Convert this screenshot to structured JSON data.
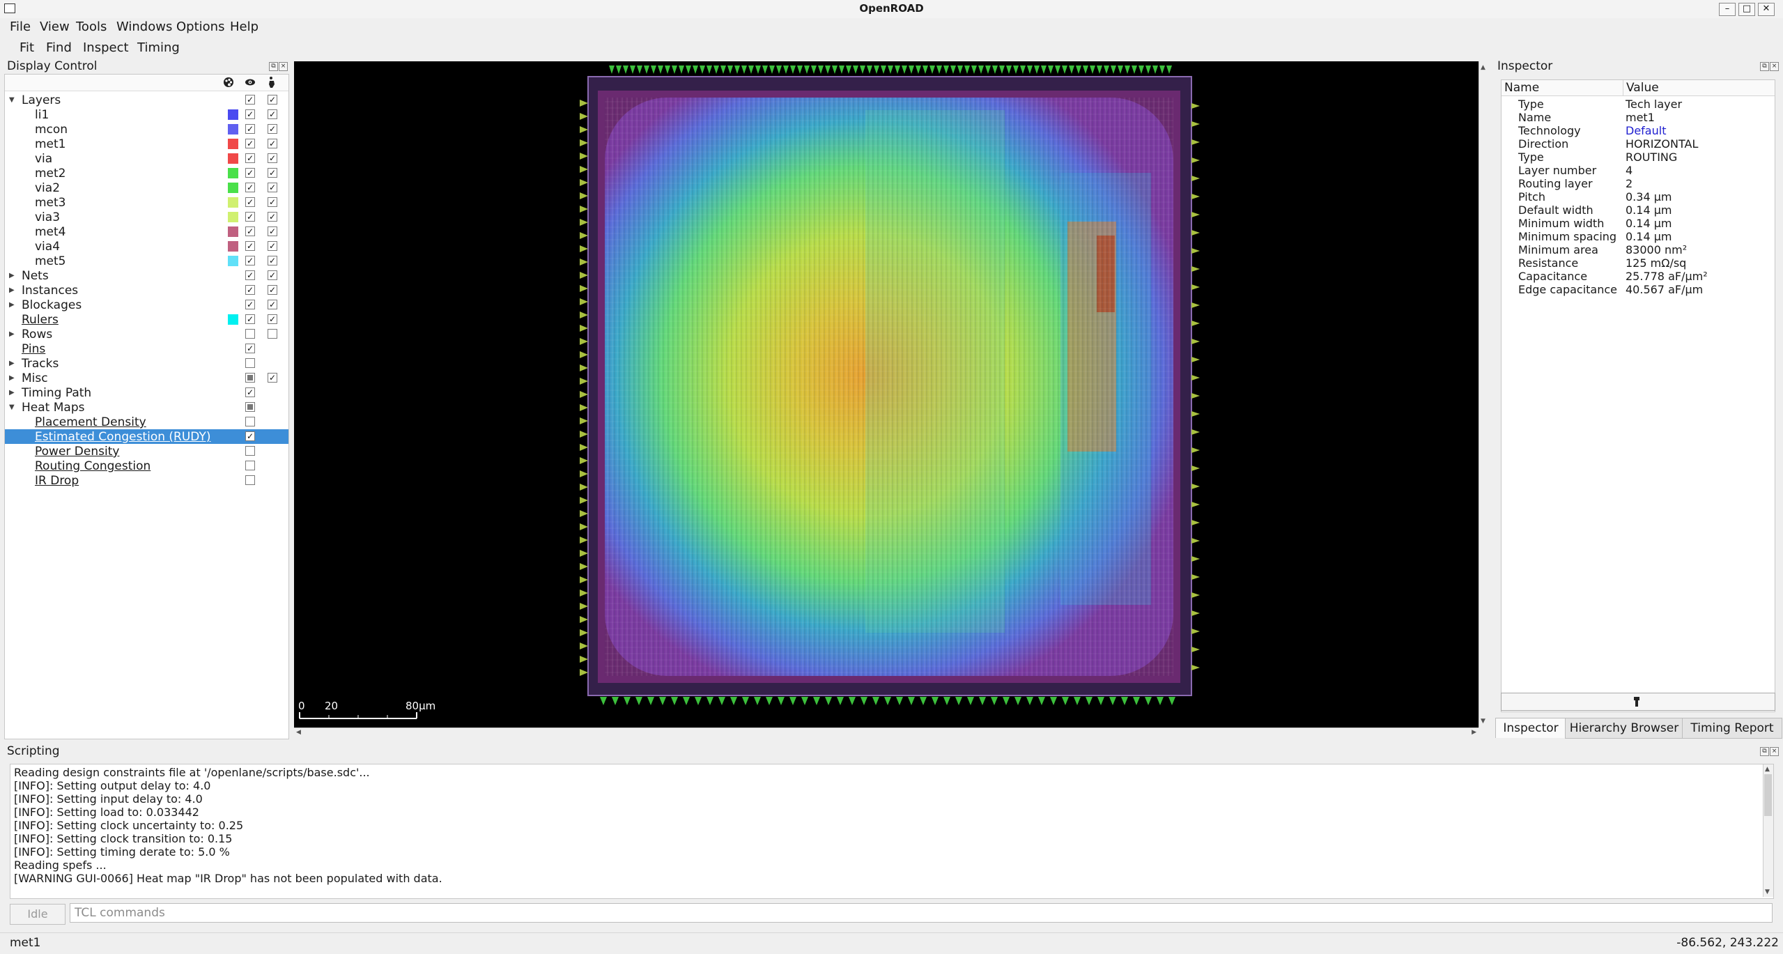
{
  "window": {
    "title": "OpenROAD",
    "minimize": "–",
    "maximize": "□",
    "close": "✕"
  },
  "menu": [
    "File",
    "View",
    "Tools",
    "Windows",
    "Options",
    "Help"
  ],
  "toolbar": [
    "Fit",
    "Find",
    "Inspect",
    "Timing"
  ],
  "display_control": {
    "title": "Display Control",
    "rows": [
      {
        "label": "Layers",
        "indent": 0,
        "expander": "open",
        "swatch": null,
        "c1": "on",
        "c2": "on"
      },
      {
        "label": "li1",
        "indent": 1,
        "expander": null,
        "swatch": "#4a4af0",
        "c1": "on",
        "c2": "on"
      },
      {
        "label": "mcon",
        "indent": 1,
        "expander": null,
        "swatch": "#6060f0",
        "c1": "on",
        "c2": "on"
      },
      {
        "label": "met1",
        "indent": 1,
        "expander": null,
        "swatch": "#f04848",
        "c1": "on",
        "c2": "on"
      },
      {
        "label": "via",
        "indent": 1,
        "expander": null,
        "swatch": "#f04848",
        "c1": "on",
        "c2": "on"
      },
      {
        "label": "met2",
        "indent": 1,
        "expander": null,
        "swatch": "#4ae04a",
        "c1": "on",
        "c2": "on"
      },
      {
        "label": "via2",
        "indent": 1,
        "expander": null,
        "swatch": "#4ae04a",
        "c1": "on",
        "c2": "on"
      },
      {
        "label": "met3",
        "indent": 1,
        "expander": null,
        "swatch": "#d0f070",
        "c1": "on",
        "c2": "on"
      },
      {
        "label": "via3",
        "indent": 1,
        "expander": null,
        "swatch": "#d0f070",
        "c1": "on",
        "c2": "on"
      },
      {
        "label": "met4",
        "indent": 1,
        "expander": null,
        "swatch": "#c06080",
        "c1": "on",
        "c2": "on"
      },
      {
        "label": "via4",
        "indent": 1,
        "expander": null,
        "swatch": "#c06080",
        "c1": "on",
        "c2": "on"
      },
      {
        "label": "met5",
        "indent": 1,
        "expander": null,
        "swatch": "#60e0f8",
        "c1": "on",
        "c2": "on"
      },
      {
        "label": "Nets",
        "indent": 0,
        "expander": "closed",
        "swatch": null,
        "c1": "on",
        "c2": "on"
      },
      {
        "label": "Instances",
        "indent": 0,
        "expander": "closed",
        "swatch": null,
        "c1": "on",
        "c2": "on"
      },
      {
        "label": "Blockages",
        "indent": 0,
        "expander": "closed",
        "swatch": null,
        "c1": "on",
        "c2": "on"
      },
      {
        "label": "Rulers",
        "indent": 0,
        "expander": null,
        "swatch": "#00f0f0",
        "c1": "on",
        "c2": "on",
        "underline": true
      },
      {
        "label": "Rows",
        "indent": 0,
        "expander": "closed",
        "swatch": null,
        "c1": "off",
        "c2": "off"
      },
      {
        "label": "Pins",
        "indent": 0,
        "expander": null,
        "swatch": null,
        "c1": "on",
        "c2": null,
        "underline": true
      },
      {
        "label": "Tracks",
        "indent": 0,
        "expander": "closed",
        "swatch": null,
        "c1": "off",
        "c2": null
      },
      {
        "label": "Misc",
        "indent": 0,
        "expander": "closed",
        "swatch": null,
        "c1": "partial",
        "c2": "on"
      },
      {
        "label": "Timing Path",
        "indent": 0,
        "expander": "closed",
        "swatch": null,
        "c1": "on",
        "c2": null
      },
      {
        "label": "Heat Maps",
        "indent": 0,
        "expander": "open",
        "swatch": null,
        "c1": "partial",
        "c2": null
      },
      {
        "label": "Placement Density",
        "indent": 1,
        "expander": null,
        "swatch": null,
        "c1": "off",
        "c2": null,
        "underline": true
      },
      {
        "label": "Estimated Congestion (RUDY)",
        "indent": 1,
        "expander": null,
        "swatch": null,
        "c1": "on",
        "c2": null,
        "underline": true,
        "selected": true
      },
      {
        "label": "Power Density",
        "indent": 1,
        "expander": null,
        "swatch": null,
        "c1": "off",
        "c2": null,
        "underline": true
      },
      {
        "label": "Routing Congestion",
        "indent": 1,
        "expander": null,
        "swatch": null,
        "c1": "off",
        "c2": null,
        "underline": true
      },
      {
        "label": "IR Drop",
        "indent": 1,
        "expander": null,
        "swatch": null,
        "c1": "off",
        "c2": null,
        "underline": true
      }
    ]
  },
  "scale_bar": {
    "ticks": [
      "0",
      "20"
    ],
    "end_label": "80μm"
  },
  "inspector": {
    "title": "Inspector",
    "col_name": "Name",
    "col_value": "Value",
    "rows": [
      {
        "name": "Type",
        "value": "Tech layer"
      },
      {
        "name": "Name",
        "value": "met1"
      },
      {
        "name": "Technology",
        "value": "Default",
        "link": true
      },
      {
        "name": "Direction",
        "value": "HORIZONTAL"
      },
      {
        "name": "Type",
        "value": "ROUTING"
      },
      {
        "name": "Layer number",
        "value": "4"
      },
      {
        "name": "Routing layer",
        "value": "2"
      },
      {
        "name": "Pitch",
        "value": "0.34 μm"
      },
      {
        "name": "Default width",
        "value": "0.14 μm"
      },
      {
        "name": "Minimum width",
        "value": "0.14 μm"
      },
      {
        "name": "Minimum spacing",
        "value": "0.14 μm"
      },
      {
        "name": "Minimum area",
        "value": "83000 nm²"
      },
      {
        "name": "Resistance",
        "value": "125 mΩ/sq"
      },
      {
        "name": "Capacitance",
        "value": "25.778 aF/μm²"
      },
      {
        "name": "Edge capacitance",
        "value": "40.567 aF/μm"
      }
    ],
    "tabs": [
      "Inspector",
      "Hierarchy Browser",
      "Timing Report"
    ]
  },
  "scripting": {
    "title": "Scripting",
    "log": [
      "Reading design constraints file at '/openlane/scripts/base.sdc'...",
      "[INFO]: Setting output delay to: 4.0",
      "[INFO]: Setting input delay to: 4.0",
      "[INFO]: Setting load to: 0.033442",
      "[INFO]: Setting clock uncertainty to: 0.25",
      "[INFO]: Setting clock transition to: 0.15",
      "[INFO]: Setting timing derate to: 5.0 %",
      "Reading spefs ...",
      "[WARNING GUI-0066] Heat map \"IR Drop\" has not been populated with data."
    ],
    "idle_label": "Idle",
    "tcl_placeholder": "TCL commands"
  },
  "status": {
    "left": "met1",
    "coords": "-86.562, 243.222"
  },
  "icons": {
    "color_column": "palette-icon",
    "visible_column": "eye-icon",
    "selectable_column": "pointer-icon",
    "inspector_button": "flashlight-icon"
  }
}
